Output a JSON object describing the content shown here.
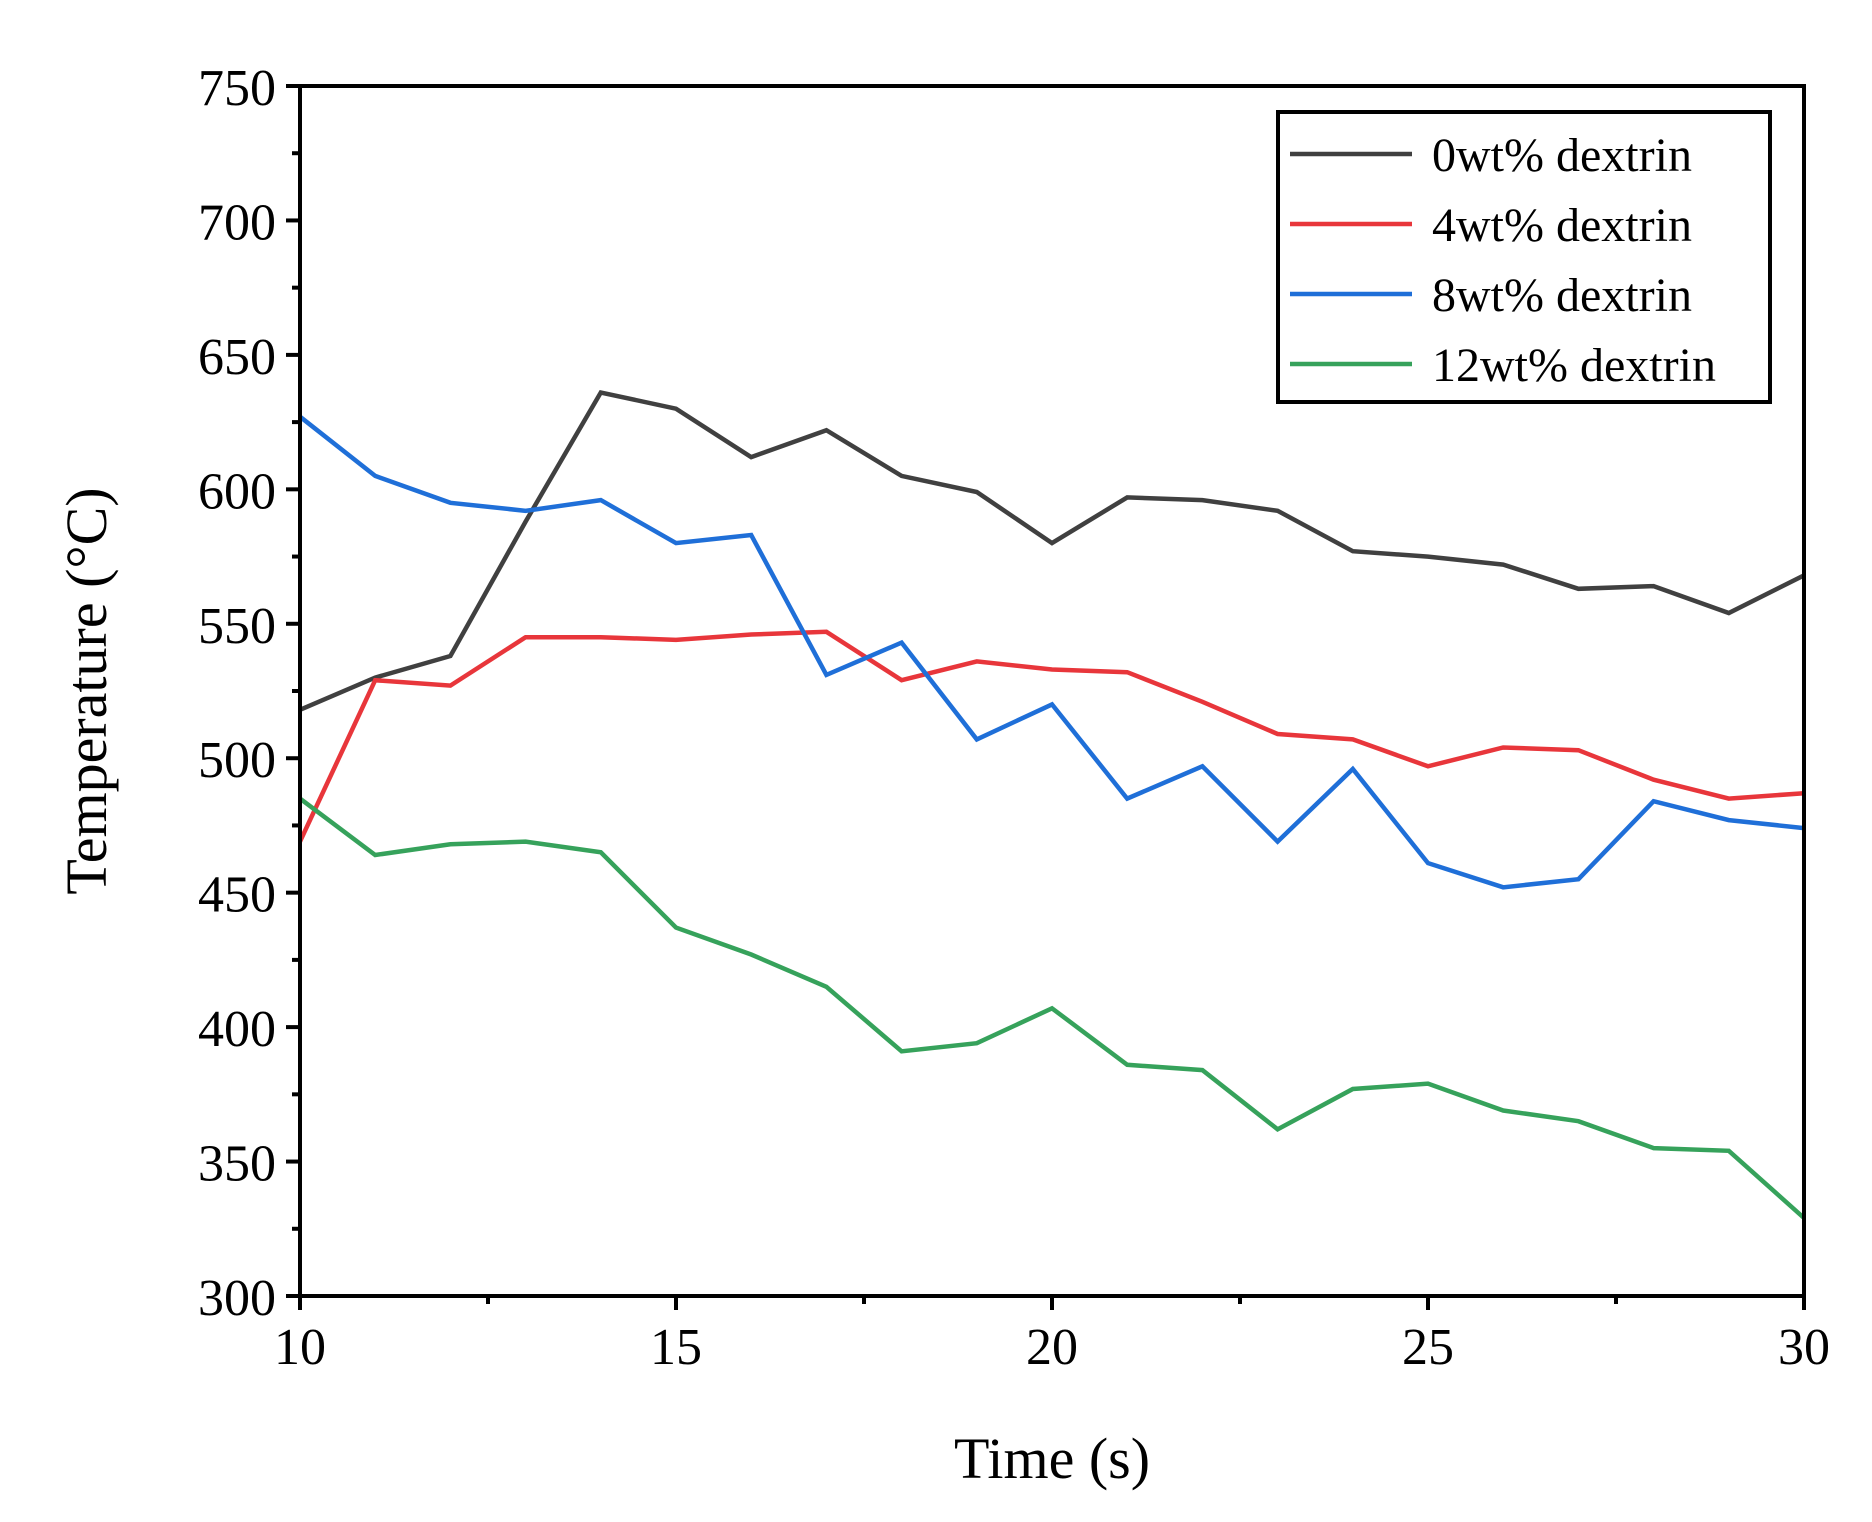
{
  "chart_data": {
    "type": "line",
    "title": "",
    "xlabel": "Time (s)",
    "ylabel": "Temperature (°C)",
    "xlim": [
      10,
      30
    ],
    "ylim": [
      300,
      750
    ],
    "xticks": [
      10,
      15,
      20,
      25,
      30
    ],
    "yticks": [
      300,
      350,
      400,
      450,
      500,
      550,
      600,
      650,
      700,
      750
    ],
    "grid": false,
    "legend_position": "top-right",
    "x": [
      10,
      11,
      12,
      13,
      14,
      15,
      16,
      17,
      18,
      19,
      20,
      21,
      22,
      23,
      24,
      25,
      26,
      27,
      28,
      29,
      30
    ],
    "series": [
      {
        "name": "0wt% dextrin",
        "color": "#404040",
        "values": [
          518,
          530,
          538,
          588,
          636,
          630,
          612,
          622,
          605,
          599,
          580,
          597,
          596,
          592,
          577,
          575,
          572,
          563,
          564,
          554,
          568
        ]
      },
      {
        "name": "4wt% dextrin",
        "color": "#e8363b",
        "values": [
          469,
          529,
          527,
          545,
          545,
          544,
          546,
          547,
          529,
          536,
          533,
          532,
          521,
          509,
          507,
          497,
          504,
          503,
          492,
          485,
          487
        ]
      },
      {
        "name": "8wt% dextrin",
        "color": "#1f6fd8",
        "values": [
          627,
          605,
          595,
          592,
          596,
          580,
          583,
          531,
          543,
          507,
          520,
          485,
          497,
          469,
          496,
          461,
          452,
          455,
          484,
          477,
          474
        ]
      },
      {
        "name": "12wt% dextrin",
        "color": "#36a25b",
        "values": [
          485,
          464,
          468,
          469,
          465,
          437,
          427,
          415,
          391,
          394,
          407,
          386,
          384,
          362,
          377,
          379,
          369,
          365,
          355,
          354,
          329
        ]
      }
    ]
  }
}
